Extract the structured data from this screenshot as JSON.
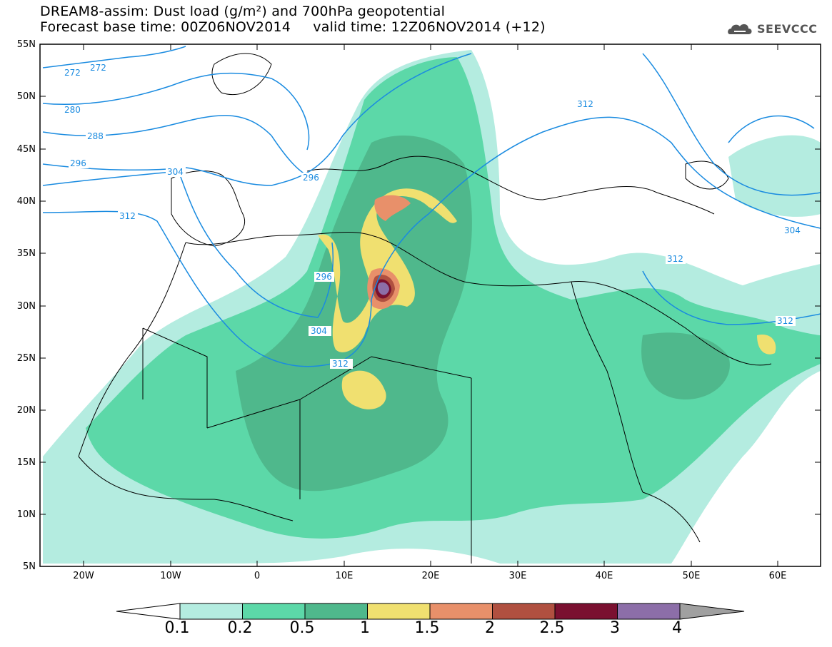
{
  "title": {
    "line1": "DREAM8-assim: Dust load (g/m²) and 700hPa geopotential",
    "line2": "Forecast base time: 00Z06NOV2014     valid time: 12Z06NOV2014 (+12)"
  },
  "logo": {
    "icon": "cloud-icon",
    "text": "SEEVCCC"
  },
  "axes": {
    "lat_labels": [
      "55N",
      "50N",
      "45N",
      "40N",
      "35N",
      "30N",
      "25N",
      "20N",
      "15N",
      "10N",
      "5N"
    ],
    "lon_labels": [
      "20W",
      "10W",
      "0",
      "10E",
      "20E",
      "30E",
      "40E",
      "50E",
      "60E"
    ]
  },
  "colorbar": {
    "labels": [
      "0.1",
      "0.2",
      "0.5",
      "1",
      "1.5",
      "2",
      "2.5",
      "3",
      "4"
    ],
    "colors": [
      "#b4ece0",
      "#5cd8a8",
      "#4fb88c",
      "#f0e070",
      "#e8906a",
      "#b05040",
      "#7a1030",
      "#8c6ea8"
    ],
    "under_color": "#ffffff",
    "over_color": "#a0a0a0"
  },
  "contour_labels": [
    "272",
    "272",
    "280",
    "288",
    "296",
    "304",
    "312",
    "296",
    "304",
    "312",
    "312",
    "296",
    "304",
    "312",
    "312"
  ],
  "colors": {
    "contour": "#1a8be0",
    "coast": "#000000"
  }
}
